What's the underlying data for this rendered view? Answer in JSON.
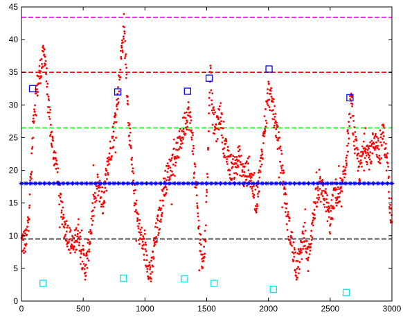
{
  "chart_data": {
    "type": "scatter",
    "title": "",
    "xlabel": "",
    "ylabel": "",
    "xlim": [
      0,
      3000
    ],
    "ylim": [
      0,
      45
    ],
    "grid": false,
    "legend": "none",
    "xticks": [
      "0",
      "500",
      "1000",
      "1500",
      "2000",
      "2500",
      "3000"
    ],
    "yticks": [
      "0",
      "5",
      "10",
      "15",
      "20",
      "25",
      "30",
      "35",
      "40",
      "45"
    ],
    "colors": {
      "signal": "#ff0000",
      "peaks": "#0000ff",
      "lows": "#00e5e5",
      "mid_line": "#0000ff",
      "line_magenta": "#ff00ff",
      "line_red": "#ff0000",
      "line_green": "#00ff00",
      "line_black": "#000000"
    },
    "horizontal_lines": [
      {
        "y": 43.4,
        "color": "#ff00ff",
        "style": "dashed"
      },
      {
        "y": 35.0,
        "color": "#ff0000",
        "style": "dashed"
      },
      {
        "y": 26.5,
        "color": "#00ff00",
        "style": "dashed"
      },
      {
        "y": 18.0,
        "color": "#0000ff",
        "style": "star-markers"
      },
      {
        "y": 9.5,
        "color": "#000000",
        "style": "dashed"
      }
    ],
    "signal_keypoints": [
      [
        0,
        9
      ],
      [
        40,
        9
      ],
      [
        60,
        14
      ],
      [
        80,
        20
      ],
      [
        100,
        29
      ],
      [
        130,
        33
      ],
      [
        160,
        36
      ],
      [
        190,
        38
      ],
      [
        220,
        29
      ],
      [
        250,
        24
      ],
      [
        280,
        21
      ],
      [
        310,
        16
      ],
      [
        340,
        12
      ],
      [
        380,
        10
      ],
      [
        420,
        8
      ],
      [
        460,
        11
      ],
      [
        490,
        7
      ],
      [
        520,
        5
      ],
      [
        550,
        9
      ],
      [
        580,
        14
      ],
      [
        620,
        18
      ],
      [
        660,
        15
      ],
      [
        700,
        21
      ],
      [
        740,
        25
      ],
      [
        780,
        31
      ],
      [
        810,
        38
      ],
      [
        830,
        42
      ],
      [
        850,
        35
      ],
      [
        870,
        27
      ],
      [
        900,
        19
      ],
      [
        940,
        12
      ],
      [
        980,
        9
      ],
      [
        1020,
        6
      ],
      [
        1050,
        4
      ],
      [
        1080,
        9
      ],
      [
        1120,
        13
      ],
      [
        1160,
        18
      ],
      [
        1200,
        20
      ],
      [
        1240,
        22
      ],
      [
        1280,
        24
      ],
      [
        1320,
        27
      ],
      [
        1350,
        29
      ],
      [
        1380,
        26
      ],
      [
        1410,
        18
      ],
      [
        1440,
        10
      ],
      [
        1470,
        6
      ],
      [
        1490,
        10
      ],
      [
        1510,
        22
      ],
      [
        1530,
        37
      ],
      [
        1550,
        28
      ],
      [
        1580,
        26
      ],
      [
        1610,
        29
      ],
      [
        1640,
        24
      ],
      [
        1680,
        21
      ],
      [
        1720,
        20
      ],
      [
        1760,
        22
      ],
      [
        1800,
        19
      ],
      [
        1840,
        20
      ],
      [
        1870,
        18
      ],
      [
        1900,
        15
      ],
      [
        1940,
        21
      ],
      [
        1970,
        27
      ],
      [
        2000,
        32
      ],
      [
        2030,
        30
      ],
      [
        2060,
        27
      ],
      [
        2090,
        23
      ],
      [
        2120,
        19
      ],
      [
        2150,
        13
      ],
      [
        2190,
        9
      ],
      [
        2230,
        5
      ],
      [
        2260,
        7
      ],
      [
        2290,
        11
      ],
      [
        2320,
        6
      ],
      [
        2350,
        11
      ],
      [
        2380,
        15
      ],
      [
        2420,
        17
      ],
      [
        2460,
        16
      ],
      [
        2500,
        12
      ],
      [
        2540,
        17
      ],
      [
        2580,
        15
      ],
      [
        2620,
        20
      ],
      [
        2650,
        26
      ],
      [
        2670,
        31
      ],
      [
        2700,
        24
      ],
      [
        2740,
        20
      ],
      [
        2780,
        24
      ],
      [
        2820,
        22
      ],
      [
        2860,
        25
      ],
      [
        2900,
        22
      ],
      [
        2930,
        26
      ],
      [
        2960,
        21
      ],
      [
        2990,
        14
      ]
    ],
    "peak_markers": {
      "x": [
        90,
        780,
        1345,
        1520,
        2005,
        2660
      ],
      "y": [
        32.5,
        32.0,
        32.1,
        34.1,
        35.5,
        31.1
      ]
    },
    "low_markers": {
      "x": [
        175,
        825,
        1320,
        1560,
        2040,
        2630
      ],
      "y": [
        2.7,
        3.5,
        3.4,
        2.7,
        1.8,
        1.3
      ]
    },
    "mid_line_star_count": 80
  }
}
